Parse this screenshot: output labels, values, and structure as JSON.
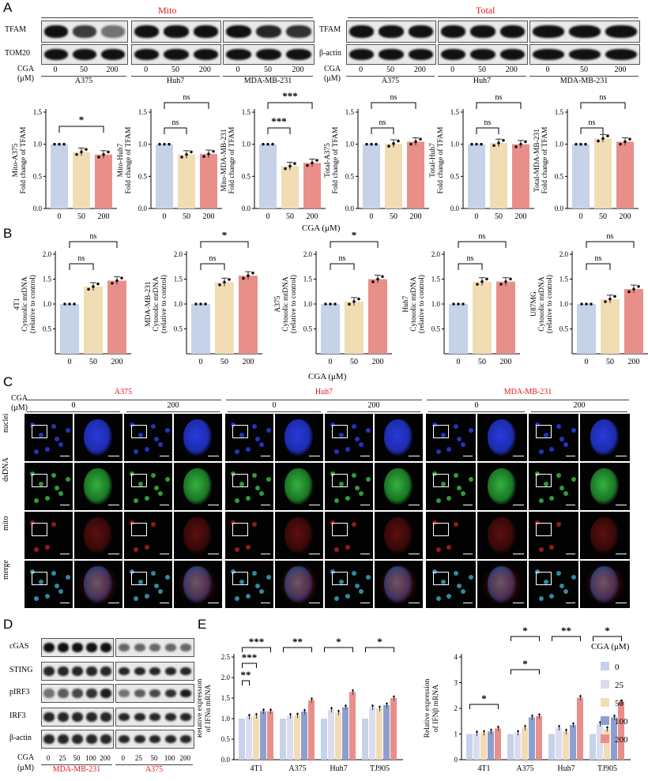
{
  "panel_labels": {
    "a": "A",
    "b": "B",
    "c": "C",
    "d": "D",
    "e": "E"
  },
  "panelA": {
    "mito_title": "Mito",
    "total_title": "Total",
    "mito_rows": [
      "TFAM",
      "TOM20"
    ],
    "total_rows": [
      "TFAM",
      "β-actin"
    ],
    "cga_label": "CGA",
    "unit_label": "(μM)",
    "doses": [
      "0",
      "50",
      "200"
    ],
    "cell_lines": [
      "A375",
      "Huh7",
      "MDA-MB-231"
    ],
    "x_axis_title": "CGA (μM)"
  },
  "panelB": {
    "x_axis_title": "CGA (μM)"
  },
  "panelC": {
    "cga_label": "CGA",
    "unit_label": "(μM)",
    "groups": [
      "A375",
      "Huh7",
      "MDA-MB-231"
    ],
    "doses": [
      "0",
      "200"
    ],
    "rows": [
      "nuclei",
      "dsDNA",
      "mito",
      "merge"
    ]
  },
  "panelD": {
    "rows": [
      "cGAS",
      "STING",
      "pIRF3",
      "IRF3",
      "β-actin"
    ],
    "cga_label": "CGA",
    "unit_label": "(μM)",
    "doses": [
      "0",
      "25",
      "50",
      "100",
      "200"
    ],
    "cell_lines": [
      "MDA-MB-231",
      "A375"
    ]
  },
  "panelE": {
    "legend_title": "CGA (μM)",
    "legend": [
      "0",
      "25",
      "50",
      "100",
      "200"
    ]
  },
  "colors": {
    "c0": "#c6d2e8",
    "c50": "#f1dcb4",
    "c200": "#e98f8a",
    "c25": "#dcdcef",
    "c100": "#8c9fcf",
    "accent": "#e8141c"
  },
  "chart_data": [
    {
      "type": "bar",
      "categories": [
        "0",
        "50",
        "200"
      ],
      "values": [
        1.0,
        0.88,
        0.84
      ],
      "ylabel": "Mito-A375\nFold change of TFAM",
      "xlabel": "CGA (μM)",
      "ylim": [
        0,
        1.5
      ],
      "yticks": [
        "0.0",
        "0.5",
        "1.0",
        "1.5"
      ],
      "significance": [
        {
          "pair": [
            "0",
            "200"
          ],
          "label": "*"
        }
      ]
    },
    {
      "type": "bar",
      "categories": [
        "0",
        "50",
        "200"
      ],
      "values": [
        1.0,
        0.84,
        0.85
      ],
      "ylabel": "Mito-Huh7\nFold change of TFAM",
      "xlabel": "CGA (μM)",
      "ylim": [
        0,
        1.5
      ],
      "yticks": [
        "0.0",
        "0.5",
        "1.0",
        "1.5"
      ],
      "significance": [
        {
          "pair": [
            "0",
            "50"
          ],
          "label": "ns"
        },
        {
          "pair": [
            "0",
            "200"
          ],
          "label": "ns"
        }
      ]
    },
    {
      "type": "bar",
      "categories": [
        "0",
        "50",
        "200"
      ],
      "values": [
        1.0,
        0.66,
        0.71
      ],
      "ylabel": "Mito-MDA-MB-231\nFold change of TFAM",
      "xlabel": "CGA (μM)",
      "ylim": [
        0,
        1.5
      ],
      "yticks": [
        "0.0",
        "0.5",
        "1.0",
        "1.5"
      ],
      "significance": [
        {
          "pair": [
            "0",
            "50"
          ],
          "label": "***"
        },
        {
          "pair": [
            "0",
            "200"
          ],
          "label": "***"
        }
      ]
    },
    {
      "type": "bar",
      "categories": [
        "0",
        "50",
        "200"
      ],
      "values": [
        1.0,
        1.01,
        1.04
      ],
      "ylabel": "Total-A375\nFold change of TFAM",
      "xlabel": "CGA (μM)",
      "ylim": [
        0,
        1.5
      ],
      "yticks": [
        "0.0",
        "0.5",
        "1.0",
        "1.5"
      ],
      "significance": [
        {
          "pair": [
            "0",
            "50"
          ],
          "label": "ns"
        },
        {
          "pair": [
            "0",
            "200"
          ],
          "label": "ns"
        }
      ]
    },
    {
      "type": "bar",
      "categories": [
        "0",
        "50",
        "200"
      ],
      "values": [
        1.0,
        1.02,
        1.0
      ],
      "ylabel": "Total-Huh7\nFold change of TFAM",
      "xlabel": "CGA (μM)",
      "ylim": [
        0,
        1.5
      ],
      "yticks": [
        "0.0",
        "0.5",
        "1.0",
        "1.5"
      ],
      "significance": [
        {
          "pair": [
            "0",
            "50"
          ],
          "label": "ns"
        },
        {
          "pair": [
            "0",
            "200"
          ],
          "label": "ns"
        }
      ]
    },
    {
      "type": "bar",
      "categories": [
        "0",
        "50",
        "200"
      ],
      "values": [
        1.0,
        1.09,
        1.04
      ],
      "ylabel": "Total-MDA-MB-231\nFold change of TFAM",
      "xlabel": "CGA (μM)",
      "ylim": [
        0,
        1.5
      ],
      "yticks": [
        "0.0",
        "0.5",
        "1.0",
        "1.5"
      ],
      "significance": [
        {
          "pair": [
            "0",
            "50"
          ],
          "label": "ns"
        },
        {
          "pair": [
            "0",
            "200"
          ],
          "label": "ns"
        }
      ]
    },
    {
      "type": "bar",
      "categories": [
        "0",
        "50",
        "200"
      ],
      "values": [
        1.0,
        1.35,
        1.47
      ],
      "ylabel": "4T1\nCytosolic mtDNA\n(relative to control)",
      "xlabel": "CGA (μM)",
      "ylim": [
        0,
        2.0
      ],
      "yticks": [
        "0.5",
        "1.0",
        "1.5",
        "2.0"
      ],
      "significance": [
        {
          "pair": [
            "0",
            "50"
          ],
          "label": "ns"
        },
        {
          "pair": [
            "0",
            "200"
          ],
          "label": "ns"
        }
      ]
    },
    {
      "type": "bar",
      "categories": [
        "0",
        "50",
        "200"
      ],
      "values": [
        1.0,
        1.44,
        1.57
      ],
      "ylabel": "MDA-MB-231\nCytosolic mtDNA\n(relative to control)",
      "xlabel": "CGA (μM)",
      "ylim": [
        0,
        2.0
      ],
      "yticks": [
        "0.5",
        "1.0",
        "1.5",
        "2.0"
      ],
      "significance": [
        {
          "pair": [
            "0",
            "50"
          ],
          "label": "ns"
        },
        {
          "pair": [
            "0",
            "200"
          ],
          "label": "*"
        }
      ]
    },
    {
      "type": "bar",
      "categories": [
        "0",
        "50",
        "200"
      ],
      "values": [
        1.0,
        1.05,
        1.5
      ],
      "ylabel": "A375\nCytosolic mtDNA\n(relative to control)",
      "xlabel": "CGA (μM)",
      "ylim": [
        0,
        2.0
      ],
      "yticks": [
        "0.5",
        "1.0",
        "1.5",
        "2.0"
      ],
      "significance": [
        {
          "pair": [
            "0",
            "50"
          ],
          "label": "ns"
        },
        {
          "pair": [
            "0",
            "200"
          ],
          "label": "*"
        }
      ]
    },
    {
      "type": "bar",
      "categories": [
        "0",
        "50",
        "200"
      ],
      "values": [
        1.0,
        1.45,
        1.45
      ],
      "ylabel": "Huh7\nCytosolic mtDNA\n(relative to control)",
      "xlabel": "CGA (μM)",
      "ylim": [
        0,
        2.0
      ],
      "yticks": [
        "0.5",
        "1.0",
        "1.5",
        "2.0"
      ],
      "significance": [
        {
          "pair": [
            "0",
            "50"
          ],
          "label": "ns"
        },
        {
          "pair": [
            "0",
            "200"
          ],
          "label": "ns"
        }
      ]
    },
    {
      "type": "bar",
      "categories": [
        "0",
        "50",
        "200"
      ],
      "values": [
        1.0,
        1.1,
        1.3
      ],
      "ylabel": "U87MG\nCytosolic mtDNA\n(relative to control)",
      "xlabel": "CGA (μM)",
      "ylim": [
        0,
        2.0
      ],
      "yticks": [
        "0.5",
        "1.0",
        "1.5",
        "2.0"
      ],
      "significance": [
        {
          "pair": [
            "0",
            "50"
          ],
          "label": "ns"
        },
        {
          "pair": [
            "0",
            "200"
          ],
          "label": "ns"
        }
      ]
    },
    {
      "type": "bar",
      "categories": [
        "4T1",
        "A375",
        "Huh7",
        "TJ905"
      ],
      "series": [
        {
          "name": "0",
          "values": [
            1.0,
            1.0,
            1.0,
            1.0
          ]
        },
        {
          "name": "25",
          "values": [
            1.05,
            1.07,
            1.22,
            1.28
          ]
        },
        {
          "name": "50",
          "values": [
            1.07,
            1.08,
            1.15,
            1.25
          ]
        },
        {
          "name": "100",
          "values": [
            1.18,
            1.17,
            1.28,
            1.33
          ]
        },
        {
          "name": "200",
          "values": [
            1.18,
            1.45,
            1.65,
            1.5
          ]
        }
      ],
      "ylabel": "Relative expression\nof IFNα mRNA",
      "ylim": [
        0,
        2.5
      ],
      "yticks": [
        "0.0",
        "0.5",
        "1.0",
        "1.5",
        "2.0",
        "2.5"
      ],
      "significance": [
        {
          "group": "4T1",
          "label": "**"
        },
        {
          "group": "4T1",
          "label": "***"
        },
        {
          "group": "4T1",
          "label": "***"
        },
        {
          "group": "A375",
          "label": "**"
        },
        {
          "group": "Huh7",
          "label": "*"
        },
        {
          "group": "TJ905",
          "label": "*"
        }
      ]
    },
    {
      "type": "bar",
      "categories": [
        "4T1",
        "A375",
        "Huh7",
        "TJ905"
      ],
      "series": [
        {
          "name": "0",
          "values": [
            1.0,
            1.0,
            1.0,
            1.0
          ]
        },
        {
          "name": "25",
          "values": [
            1.03,
            1.05,
            1.25,
            1.4
          ]
        },
        {
          "name": "50",
          "values": [
            1.05,
            1.25,
            1.1,
            1.2
          ]
        },
        {
          "name": "100",
          "values": [
            1.1,
            1.65,
            1.35,
            1.65
          ]
        },
        {
          "name": "200",
          "values": [
            1.22,
            1.7,
            2.42,
            2.25
          ]
        }
      ],
      "ylabel": "Relative expression\nof IFNβ mRNA",
      "ylim": [
        0,
        4
      ],
      "yticks": [
        "0",
        "1",
        "2",
        "3",
        "4"
      ],
      "significance": [
        {
          "group": "4T1",
          "label": "*"
        },
        {
          "group": "A375",
          "label": "*"
        },
        {
          "group": "A375",
          "label": "*"
        },
        {
          "group": "Huh7",
          "label": "**"
        },
        {
          "group": "TJ905",
          "label": "*"
        }
      ]
    }
  ]
}
